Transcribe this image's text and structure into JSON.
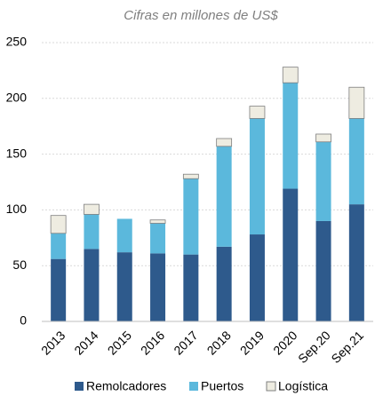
{
  "chart_data": {
    "type": "stacked_bar",
    "subtitle": "Cifras en millones de US$",
    "categories": [
      "2013",
      "2014",
      "2015",
      "2016",
      "2017",
      "2018",
      "2019",
      "2020",
      "Sep.20",
      "Sep.21"
    ],
    "series": [
      {
        "name": "Remolcadores",
        "color": "#2e5a8c",
        "values": [
          56,
          65,
          62,
          61,
          60,
          67,
          78,
          119,
          90,
          105
        ]
      },
      {
        "name": "Puertos",
        "color": "#5bb8dc",
        "values": [
          23,
          31,
          30,
          27,
          68,
          90,
          104,
          95,
          71,
          77
        ]
      },
      {
        "name": "Logística",
        "color": "#eeece1",
        "values": [
          16,
          9,
          0,
          3,
          4,
          7,
          11,
          14,
          7,
          28
        ]
      }
    ],
    "ylim": [
      0,
      250
    ],
    "yticks": [
      0,
      50,
      100,
      150,
      200,
      250
    ],
    "grid": true
  }
}
